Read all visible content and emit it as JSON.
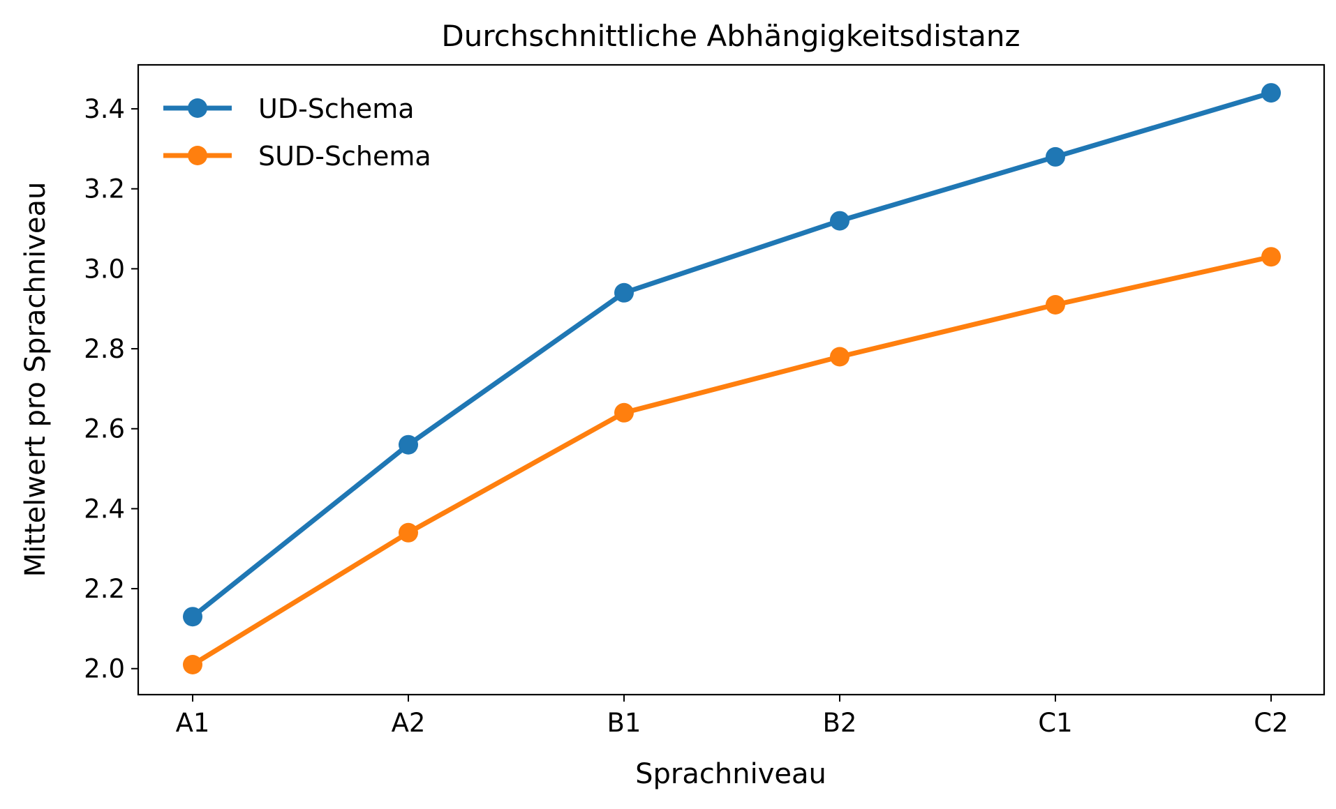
{
  "chart_data": {
    "type": "line",
    "title": "Durchschnittliche Abhängigkeitsdistanz",
    "xlabel": "Sprachniveau",
    "ylabel": "Mittelwert pro Sprachniveau",
    "categories": [
      "A1",
      "A2",
      "B1",
      "B2",
      "C1",
      "C2"
    ],
    "ylim": [
      1.935,
      3.51
    ],
    "yticks": [
      2.0,
      2.2,
      2.4,
      2.6,
      2.8,
      3.0,
      3.2,
      3.4
    ],
    "ytick_labels": [
      "2.0",
      "2.2",
      "2.4",
      "2.6",
      "2.8",
      "3.0",
      "3.2",
      "3.4"
    ],
    "grid": false,
    "legend_position": "top-left",
    "series": [
      {
        "name": "UD-Schema",
        "color": "#1f77b4",
        "marker": "circle",
        "values": [
          2.13,
          2.56,
          2.94,
          3.12,
          3.28,
          3.44
        ]
      },
      {
        "name": "SUD-Schema",
        "color": "#ff7f0e",
        "marker": "circle",
        "values": [
          2.01,
          2.34,
          2.64,
          2.78,
          2.91,
          3.03
        ]
      }
    ]
  }
}
